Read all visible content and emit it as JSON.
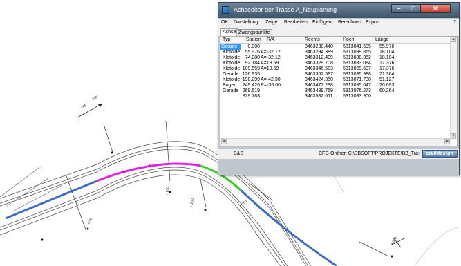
{
  "window": {
    "title": "Achseditor der Trasse A_Neuplanung",
    "help_label": "?"
  },
  "menu": [
    "OK",
    "Darstellung",
    "Zeige",
    "Bearbeiten",
    "Einfügen",
    "Berechnen",
    "Export"
  ],
  "tabs": [
    {
      "label": "Achse",
      "active": true
    },
    {
      "label": "Zwangspunkte",
      "active": false
    }
  ],
  "table": {
    "columns": [
      "Typ",
      "Station",
      "R/A",
      "Rechts",
      "Hoch",
      "Länge"
    ],
    "rows": [
      {
        "typ": "Gerade",
        "station": "0.000",
        "ra": "",
        "rechts": "3463238.440",
        "hoch": "5313041.595",
        "laenge": "55.976",
        "selected": true
      },
      {
        "typ": "Klotoide",
        "station": "55.976",
        "ra": "A=-32.12",
        "rechts": "3463294.389",
        "hoch": "5313039.865",
        "laenge": "18.104"
      },
      {
        "typ": "Klotoide",
        "station": "74.080",
        "ra": "A=-32.12",
        "rechts": "3463312.409",
        "hoch": "5313038.352",
        "laenge": "18.104"
      },
      {
        "typ": "Klotoide",
        "station": "92.184",
        "ra": "A=18.59",
        "rechts": "3463329.708",
        "hoch": "5313033.084",
        "laenge": "17.376"
      },
      {
        "typ": "Klotoide",
        "station": "109.559",
        "ra": "A=18.59",
        "rechts": "3463346.583",
        "hoch": "5313029.607",
        "laenge": "17.376"
      },
      {
        "typ": "Gerade",
        "station": "126.935",
        "ra": "",
        "rechts": "3463362.587",
        "hoch": "5313035.988",
        "laenge": "71.364"
      },
      {
        "typ": "Klotoide",
        "station": "198.299",
        "ra": "A=-42.30",
        "rechts": "3463424.350",
        "hoch": "5313071.738",
        "laenge": "51.127"
      },
      {
        "typ": "Bogen",
        "station": "249.426",
        "ra": "R=-35.00",
        "rechts": "3463472.298",
        "hoch": "5313085.647",
        "laenge": "20.093"
      },
      {
        "typ": "Gerade",
        "station": "269.519",
        "ra": "",
        "rechts": "3463489.759",
        "hoch": "5313076.273",
        "laenge": "60.264"
      },
      {
        "typ": "",
        "station": "329.783",
        "ra": "",
        "rechts": "3463532.611",
        "hoch": "5313033.900",
        "laenge": ""
      }
    ]
  },
  "status": {
    "left": "B&B",
    "folder": "CFG-Ordner: C:\\BBSOFT\\PROJEKTE\\BB_Tra:",
    "logo": "civildesign"
  },
  "drawing": {
    "labels": [
      {
        "text": "105°"
      },
      {
        "text": "100"
      },
      {
        "text": "K"
      },
      {
        "text": "K"
      },
      {
        "text": "K"
      },
      {
        "text": "+ 50"
      },
      {
        "text": "+ 100"
      },
      {
        "text": "+ 200"
      },
      {
        "text": "+ 250"
      },
      {
        "text": "+ 300"
      }
    ]
  },
  "colors": {
    "axis_straight": "#3a6cc8",
    "axis_clothoid": "#e61ee6",
    "axis_arc": "#33cc22",
    "lane_line": "#333333"
  }
}
